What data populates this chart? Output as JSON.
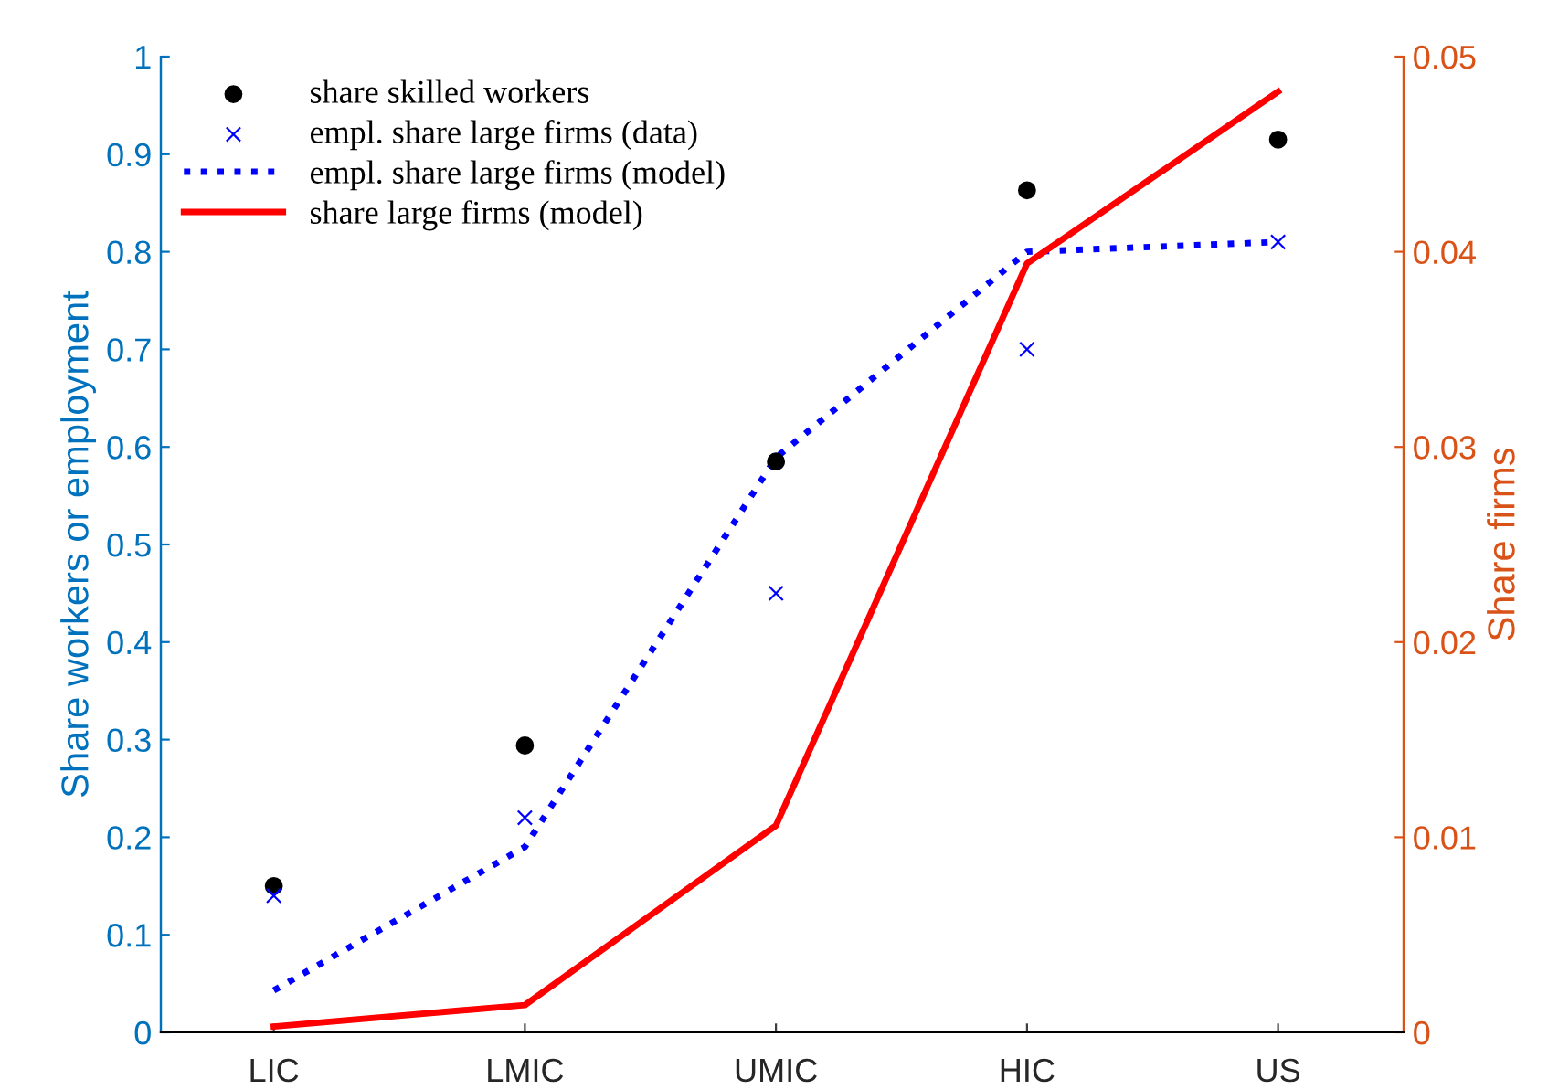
{
  "chart_data": {
    "type": "line",
    "categories": [
      "LIC",
      "LMIC",
      "UMIC",
      "HIC",
      "US"
    ],
    "ylabel": "Share workers or employment",
    "y2label": "Share firms",
    "ylim": [
      0,
      1
    ],
    "yticks": [
      0,
      0.1,
      0.2,
      0.3,
      0.4,
      0.5,
      0.6,
      0.7,
      0.8,
      0.9,
      1
    ],
    "y2lim": [
      0,
      0.05
    ],
    "y2ticks": [
      0,
      0.01,
      0.02,
      0.03,
      0.04,
      0.05
    ],
    "legend": "top left",
    "grid": false,
    "series": [
      {
        "name": "share skilled workers",
        "type": "scatter",
        "marker": "circle",
        "color": "#000000",
        "values": [
          0.15,
          0.294,
          0.585,
          0.863,
          0.915
        ]
      },
      {
        "name": "empl. share large firms (data)",
        "type": "scatter",
        "marker": "cross",
        "color": "#0000ff",
        "values": [
          0.14,
          0.22,
          0.45,
          0.7,
          0.81
        ]
      },
      {
        "name": "empl. share large firms (model)",
        "line_style": "dotted",
        "color": "#0000ff",
        "values": [
          0.043,
          0.19,
          0.589,
          0.8,
          0.81
        ]
      },
      {
        "name": "share large firms (model)",
        "line_style": "solid",
        "axis": "y2",
        "color": "#ff0000",
        "values": [
          0.0003,
          0.0014,
          0.0106,
          0.0394,
          0.0482
        ]
      }
    ]
  }
}
